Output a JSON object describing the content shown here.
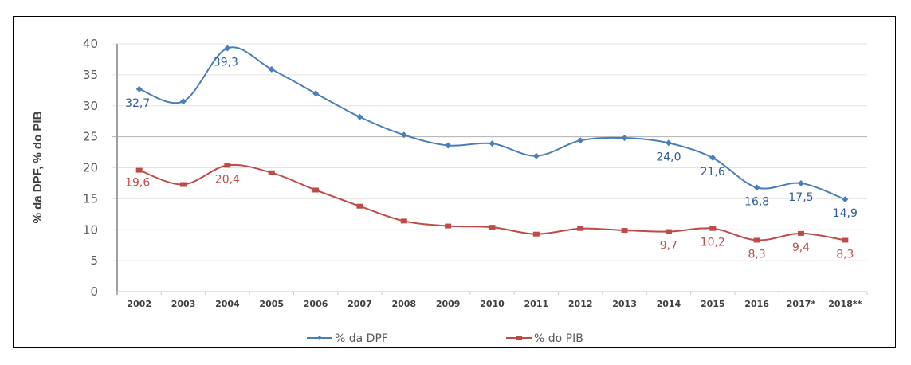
{
  "chart_data": {
    "type": "line",
    "title": "",
    "xlabel": "",
    "ylabel": "% da DPF, % do PIB",
    "ylim": [
      0,
      40
    ],
    "yticks": [
      0,
      5,
      10,
      15,
      20,
      25,
      30,
      35,
      40
    ],
    "grid": true,
    "legend_position": "bottom",
    "categories": [
      "2002",
      "2003",
      "2004",
      "2005",
      "2006",
      "2007",
      "2008",
      "2009",
      "2010",
      "2011",
      "2012",
      "2013",
      "2014",
      "2015",
      "2016",
      "2017*",
      "2018**"
    ],
    "series": [
      {
        "name": "% da DPF",
        "color": "#4a7ebb",
        "marker": "diamond",
        "values": [
          32.7,
          30.7,
          39.3,
          35.9,
          32.0,
          28.2,
          25.3,
          23.6,
          23.9,
          21.9,
          24.4,
          24.8,
          24.0,
          21.6,
          16.8,
          17.5,
          14.9
        ],
        "data_labels": [
          "32,7",
          null,
          "39,3",
          null,
          null,
          null,
          null,
          null,
          null,
          null,
          null,
          null,
          "24,0",
          "21,6",
          "16,8",
          "17,5",
          "14,9"
        ]
      },
      {
        "name": "% do PIB",
        "color": "#be4b48",
        "marker": "square",
        "values": [
          19.6,
          17.3,
          20.4,
          19.2,
          16.4,
          13.8,
          11.4,
          10.6,
          10.4,
          9.3,
          10.2,
          9.9,
          9.7,
          10.2,
          8.3,
          9.4,
          8.3
        ],
        "data_labels": [
          "19,6",
          null,
          "20,4",
          null,
          null,
          null,
          null,
          null,
          null,
          null,
          null,
          null,
          "9,7",
          "10,2",
          "8,3",
          "9,4",
          "8,3"
        ]
      }
    ]
  }
}
